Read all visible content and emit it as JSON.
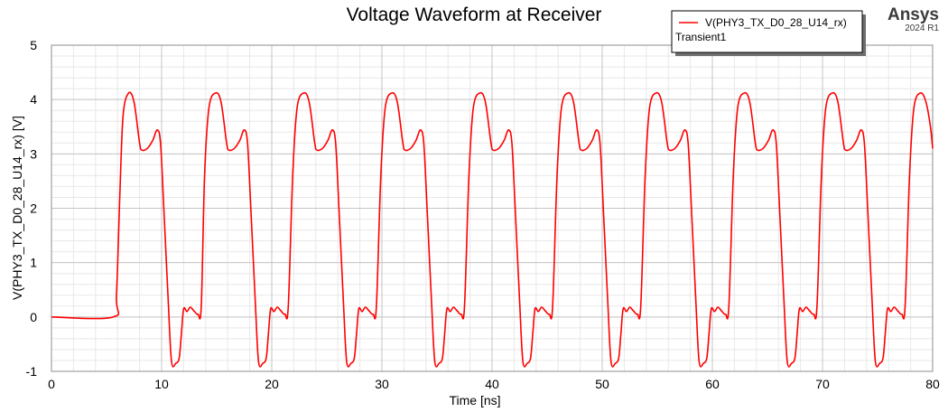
{
  "branding": {
    "name": "Ansys",
    "version": "2024 R1"
  },
  "legend": {
    "series_label": "V(PHY3_TX_D0_28_U14_rx)",
    "setup_label": "Transient1",
    "color": "#ff0000"
  },
  "chart_data": {
    "type": "line",
    "title": "Voltage Waveform at Receiver",
    "xlabel": "Time [ns]",
    "ylabel": "V(PHY3_TX_D0_28_U14_rx) [V]",
    "xlim": [
      0,
      80
    ],
    "ylim": [
      -1,
      5
    ],
    "xticks": [
      "0",
      "10",
      "20",
      "30",
      "40",
      "50",
      "60",
      "70",
      "80"
    ],
    "yticks": [
      "-1",
      "0",
      "1",
      "2",
      "3",
      "4",
      "5"
    ],
    "grid": true,
    "legend_position": "top-right",
    "series": [
      {
        "name": "V(PHY3_TX_D0_28_U14_rx)",
        "color": "#ff0000",
        "points": [
          [
            0,
            0
          ],
          [
            5.6,
            0
          ],
          [
            5.9,
            0.4
          ],
          [
            6.2,
            2.2
          ],
          [
            6.5,
            3.7
          ],
          [
            7.0,
            4.12
          ],
          [
            7.5,
            3.95
          ],
          [
            8.0,
            3.2
          ],
          [
            8.2,
            3.07
          ],
          [
            8.7,
            3.1
          ],
          [
            9.2,
            3.25
          ],
          [
            9.6,
            3.44
          ],
          [
            9.9,
            3.2
          ],
          [
            10.2,
            2.0
          ],
          [
            10.6,
            0.3
          ],
          [
            10.9,
            -0.82
          ],
          [
            11.3,
            -0.85
          ],
          [
            11.6,
            -0.75
          ],
          [
            11.8,
            -0.3
          ],
          [
            12.0,
            0.15
          ],
          [
            12.3,
            0.1
          ],
          [
            12.6,
            0.18
          ],
          [
            12.9,
            0.12
          ],
          [
            13.3,
            0.05
          ],
          [
            13.6,
            0.2
          ],
          [
            13.9,
            2.6
          ],
          [
            14.3,
            3.85
          ],
          [
            14.9,
            4.12
          ],
          [
            15.4,
            3.95
          ],
          [
            15.9,
            3.2
          ],
          [
            16.1,
            3.07
          ],
          [
            16.6,
            3.1
          ],
          [
            17.1,
            3.25
          ],
          [
            17.5,
            3.44
          ],
          [
            17.8,
            3.2
          ],
          [
            18.1,
            2.0
          ],
          [
            18.5,
            0.3
          ],
          [
            18.8,
            -0.82
          ],
          [
            19.2,
            -0.85
          ],
          [
            19.5,
            -0.75
          ],
          [
            19.7,
            -0.3
          ],
          [
            19.9,
            0.15
          ],
          [
            20.2,
            0.1
          ],
          [
            20.5,
            0.18
          ],
          [
            20.8,
            0.12
          ],
          [
            21.2,
            0.05
          ],
          [
            21.5,
            0.2
          ],
          [
            21.9,
            2.6
          ],
          [
            22.3,
            3.85
          ],
          [
            22.9,
            4.12
          ],
          [
            23.4,
            3.95
          ],
          [
            23.9,
            3.2
          ],
          [
            24.1,
            3.07
          ],
          [
            24.6,
            3.1
          ],
          [
            25.1,
            3.25
          ],
          [
            25.5,
            3.44
          ],
          [
            25.8,
            3.2
          ],
          [
            26.1,
            2.0
          ],
          [
            26.5,
            0.3
          ],
          [
            26.8,
            -0.82
          ],
          [
            27.2,
            -0.85
          ],
          [
            27.5,
            -0.75
          ],
          [
            27.7,
            -0.3
          ],
          [
            27.9,
            0.15
          ],
          [
            28.2,
            0.1
          ],
          [
            28.5,
            0.18
          ],
          [
            28.8,
            0.12
          ],
          [
            29.2,
            0.05
          ],
          [
            29.5,
            0.2
          ],
          [
            29.9,
            2.6
          ],
          [
            30.3,
            3.85
          ],
          [
            30.9,
            4.12
          ],
          [
            31.4,
            3.95
          ],
          [
            31.9,
            3.2
          ],
          [
            32.1,
            3.07
          ],
          [
            32.6,
            3.1
          ],
          [
            33.1,
            3.25
          ],
          [
            33.5,
            3.44
          ],
          [
            33.8,
            3.2
          ],
          [
            34.1,
            2.0
          ],
          [
            34.5,
            0.3
          ],
          [
            34.8,
            -0.82
          ],
          [
            35.2,
            -0.85
          ],
          [
            35.5,
            -0.75
          ],
          [
            35.7,
            -0.3
          ],
          [
            35.9,
            0.15
          ],
          [
            36.2,
            0.1
          ],
          [
            36.5,
            0.18
          ],
          [
            36.8,
            0.12
          ],
          [
            37.2,
            0.05
          ],
          [
            37.5,
            0.2
          ],
          [
            37.9,
            2.6
          ],
          [
            38.3,
            3.85
          ],
          [
            38.9,
            4.12
          ],
          [
            39.4,
            3.95
          ],
          [
            39.9,
            3.2
          ],
          [
            40.1,
            3.07
          ],
          [
            40.6,
            3.1
          ],
          [
            41.1,
            3.25
          ],
          [
            41.5,
            3.44
          ],
          [
            41.8,
            3.2
          ],
          [
            42.1,
            2.0
          ],
          [
            42.5,
            0.3
          ],
          [
            42.8,
            -0.82
          ],
          [
            43.2,
            -0.85
          ],
          [
            43.5,
            -0.75
          ],
          [
            43.7,
            -0.3
          ],
          [
            43.9,
            0.15
          ],
          [
            44.2,
            0.1
          ],
          [
            44.5,
            0.18
          ],
          [
            44.8,
            0.12
          ],
          [
            45.2,
            0.05
          ],
          [
            45.5,
            0.2
          ],
          [
            45.9,
            2.6
          ],
          [
            46.3,
            3.85
          ],
          [
            46.9,
            4.12
          ],
          [
            47.4,
            3.95
          ],
          [
            47.9,
            3.2
          ],
          [
            48.1,
            3.07
          ],
          [
            48.6,
            3.1
          ],
          [
            49.1,
            3.25
          ],
          [
            49.5,
            3.44
          ],
          [
            49.8,
            3.2
          ],
          [
            50.1,
            2.0
          ],
          [
            50.5,
            0.3
          ],
          [
            50.8,
            -0.82
          ],
          [
            51.2,
            -0.85
          ],
          [
            51.5,
            -0.75
          ],
          [
            51.7,
            -0.3
          ],
          [
            51.9,
            0.15
          ],
          [
            52.2,
            0.1
          ],
          [
            52.5,
            0.18
          ],
          [
            52.8,
            0.12
          ],
          [
            53.2,
            0.05
          ],
          [
            53.5,
            0.2
          ],
          [
            53.9,
            2.6
          ],
          [
            54.3,
            3.85
          ],
          [
            54.9,
            4.12
          ],
          [
            55.4,
            3.95
          ],
          [
            55.9,
            3.2
          ],
          [
            56.1,
            3.07
          ],
          [
            56.6,
            3.1
          ],
          [
            57.1,
            3.25
          ],
          [
            57.5,
            3.44
          ],
          [
            57.8,
            3.2
          ],
          [
            58.1,
            2.0
          ],
          [
            58.5,
            0.3
          ],
          [
            58.8,
            -0.82
          ],
          [
            59.2,
            -0.85
          ],
          [
            59.5,
            -0.75
          ],
          [
            59.7,
            -0.3
          ],
          [
            59.9,
            0.15
          ],
          [
            60.2,
            0.1
          ],
          [
            60.5,
            0.18
          ],
          [
            60.8,
            0.12
          ],
          [
            61.2,
            0.05
          ],
          [
            61.5,
            0.2
          ],
          [
            61.9,
            2.6
          ],
          [
            62.3,
            3.85
          ],
          [
            62.9,
            4.12
          ],
          [
            63.4,
            3.95
          ],
          [
            63.9,
            3.2
          ],
          [
            64.1,
            3.07
          ],
          [
            64.6,
            3.1
          ],
          [
            65.1,
            3.25
          ],
          [
            65.5,
            3.44
          ],
          [
            65.8,
            3.2
          ],
          [
            66.1,
            2.0
          ],
          [
            66.5,
            0.3
          ],
          [
            66.8,
            -0.82
          ],
          [
            67.2,
            -0.85
          ],
          [
            67.5,
            -0.75
          ],
          [
            67.7,
            -0.3
          ],
          [
            67.9,
            0.15
          ],
          [
            68.2,
            0.1
          ],
          [
            68.5,
            0.18
          ],
          [
            68.8,
            0.12
          ],
          [
            69.2,
            0.05
          ],
          [
            69.5,
            0.2
          ],
          [
            69.9,
            2.6
          ],
          [
            70.3,
            3.85
          ],
          [
            70.9,
            4.12
          ],
          [
            71.4,
            3.95
          ],
          [
            71.9,
            3.2
          ],
          [
            72.1,
            3.07
          ],
          [
            72.6,
            3.1
          ],
          [
            73.1,
            3.25
          ],
          [
            73.5,
            3.44
          ],
          [
            73.8,
            3.2
          ],
          [
            74.1,
            2.0
          ],
          [
            74.5,
            0.3
          ],
          [
            74.8,
            -0.82
          ],
          [
            75.2,
            -0.85
          ],
          [
            75.5,
            -0.75
          ],
          [
            75.7,
            -0.3
          ],
          [
            75.9,
            0.15
          ],
          [
            76.2,
            0.1
          ],
          [
            76.5,
            0.18
          ],
          [
            76.8,
            0.12
          ],
          [
            77.2,
            0.05
          ],
          [
            77.5,
            0.2
          ],
          [
            77.9,
            2.6
          ],
          [
            78.3,
            3.85
          ],
          [
            78.9,
            4.12
          ],
          [
            79.4,
            3.95
          ],
          [
            79.8,
            3.5
          ],
          [
            80.0,
            3.1
          ]
        ]
      }
    ]
  }
}
